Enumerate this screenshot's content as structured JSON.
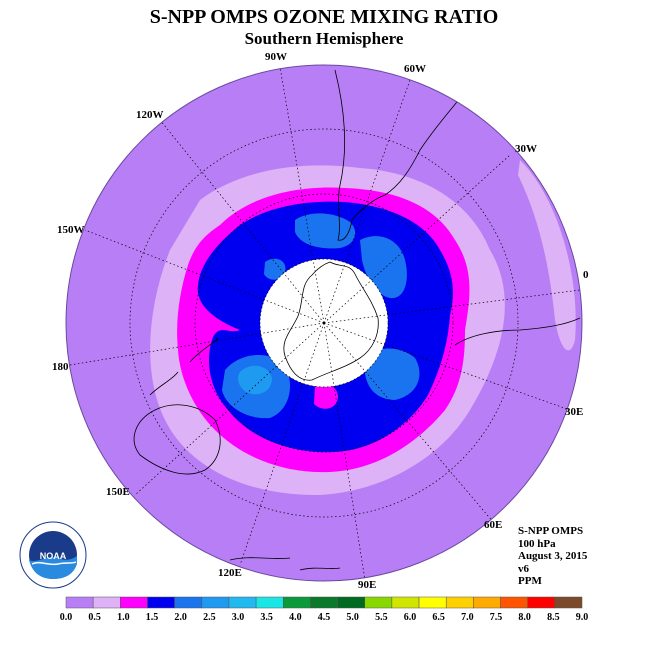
{
  "header": {
    "title": "S-NPP OMPS OZONE MIXING RATIO",
    "subtitle": "Southern Hemisphere"
  },
  "map": {
    "projection": "south-polar-stereographic",
    "longitude_labels": [
      "90W",
      "60W",
      "30W",
      "0",
      "30E",
      "60E",
      "90E",
      "120E",
      "150E",
      "180",
      "150W",
      "120W"
    ],
    "fill_colors": {
      "level_0_0.5": "#b87ef5",
      "level_0.5_1.0": "#ddb2f6",
      "level_1.0_1.5": "#ff00ff",
      "level_1.5_2.0": "#0000f0",
      "level_2.0_2.5": "#1a74f0",
      "polar_night": "#ffffff"
    }
  },
  "info": {
    "instrument": "S-NPP OMPS",
    "pressure": "100 hPa",
    "date": "August 3, 2015",
    "version": "v6",
    "units": "PPM"
  },
  "logo": {
    "text": "NOAA",
    "ring_text": "NATIONAL OCEANIC AND ATMOSPHERIC ADMINISTRATION · U.S. DEPARTMENT OF COMMERCE"
  },
  "legend": {
    "ticks": [
      "0.0",
      "0.5",
      "1.0",
      "1.5",
      "2.0",
      "2.5",
      "3.0",
      "3.5",
      "4.0",
      "4.5",
      "5.0",
      "5.5",
      "6.0",
      "6.5",
      "7.0",
      "7.5",
      "8.0",
      "8.5",
      "9.0"
    ],
    "colors": [
      "#b87ef5",
      "#ddb2f6",
      "#ff00ff",
      "#0000f0",
      "#1a74f0",
      "#1e9af0",
      "#22b8f0",
      "#1ae6e6",
      "#0a9a3a",
      "#0a7a2a",
      "#006a20",
      "#88d800",
      "#d0e600",
      "#ffff00",
      "#ffd000",
      "#ffaa00",
      "#ff5500",
      "#ff0000",
      "#7a4a2a"
    ]
  }
}
